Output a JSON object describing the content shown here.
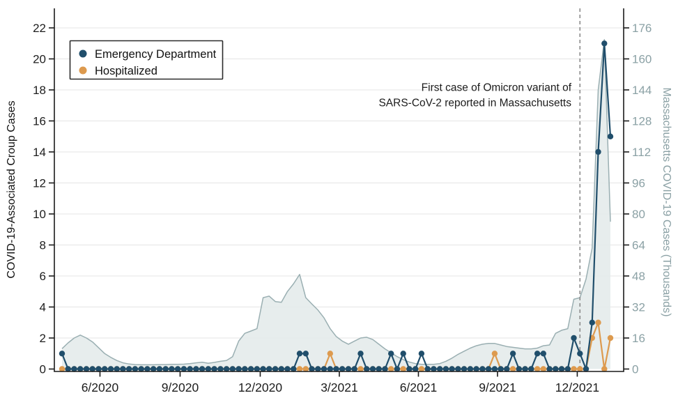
{
  "page": {
    "background": "#ffffff"
  },
  "colors": {
    "emergency_department": "#204e6b",
    "hospitalized": "#dd9a4e",
    "area_fill": "#e4ebeb",
    "area_stroke": "#9aafb2",
    "gridline": "#e9e9e9",
    "axis_line": "#1a1a1a",
    "dashed_reference_line": "#8a8a8a",
    "right_axis_text": "#8ba1a5"
  },
  "chart_data": {
    "type": "line",
    "subtype": "two weekly case-count lines (left axis) over a shaded area series (right axis)",
    "x_unit": "week_index",
    "n_weeks": 91,
    "x_ticks": [
      {
        "label": "6/2020",
        "week": 6.23
      },
      {
        "label": "9/2020",
        "week": 19.38
      },
      {
        "label": "12/2020",
        "week": 32.53
      },
      {
        "label": "3/2021",
        "week": 45.51
      },
      {
        "label": "6/2021",
        "week": 58.49
      },
      {
        "label": "9/2021",
        "week": 71.47
      },
      {
        "label": "12/2021",
        "week": 84.56
      }
    ],
    "y_left": {
      "label": "COVID-19-Associated Croup Cases",
      "min": 0,
      "max": 22,
      "step": 2,
      "grid": true
    },
    "y_right": {
      "label": "Massachusetts COVID-19 Cases (Thousands)",
      "min": 0,
      "max": 176,
      "step": 16
    },
    "annotation": {
      "line1": "First case of Omicron variant of",
      "line2": "SARS-CoV-2 reported in Massachusetts",
      "week": 85,
      "style": "vertical dashed line"
    },
    "legend": {
      "position": "top-left inside plot",
      "entries": [
        "Emergency Department",
        "Hospitalized"
      ]
    },
    "series": [
      {
        "name": "Emergency Department",
        "axis": "left",
        "color": "#204e6b",
        "marker": "dot",
        "values": [
          1,
          0,
          0,
          0,
          0,
          0,
          0,
          0,
          0,
          0,
          0,
          0,
          0,
          0,
          0,
          0,
          0,
          0,
          0,
          0,
          0,
          0,
          0,
          0,
          0,
          0,
          0,
          0,
          0,
          0,
          0,
          0,
          0,
          0,
          0,
          0,
          0,
          0,
          0,
          1,
          1,
          0,
          0,
          0,
          0,
          0,
          0,
          0,
          0,
          1,
          0,
          0,
          0,
          0,
          1,
          0,
          1,
          0,
          0,
          1,
          0,
          0,
          0,
          0,
          0,
          0,
          0,
          0,
          0,
          0,
          0,
          0,
          0,
          0,
          1,
          0,
          0,
          0,
          1,
          1,
          0,
          0,
          0,
          0,
          2,
          1,
          0,
          3,
          14,
          21,
          15
        ]
      },
      {
        "name": "Hospitalized",
        "axis": "left",
        "color": "#dd9a4e",
        "marker": "dot",
        "values": [
          0,
          0,
          0,
          0,
          0,
          0,
          0,
          0,
          0,
          0,
          0,
          0,
          0,
          0,
          0,
          0,
          0,
          0,
          0,
          0,
          0,
          0,
          0,
          0,
          0,
          0,
          0,
          0,
          0,
          0,
          0,
          0,
          0,
          0,
          0,
          0,
          0,
          0,
          0,
          0,
          0,
          0,
          0,
          0,
          1,
          0,
          0,
          0,
          0,
          0,
          0,
          0,
          0,
          0,
          0,
          0,
          0,
          0,
          0,
          0,
          0,
          0,
          0,
          0,
          0,
          0,
          0,
          0,
          0,
          0,
          0,
          1,
          0,
          0,
          0,
          0,
          0,
          0,
          0,
          0,
          0,
          0,
          0,
          0,
          0,
          0,
          0,
          2,
          3,
          0,
          2
        ]
      },
      {
        "name": "Massachusetts COVID-19 Cases (Thousands)",
        "axis": "right",
        "type": "area",
        "fill": "#e4ebeb",
        "stroke": "#9aafb2",
        "values": [
          10.5,
          13.5,
          16,
          17.5,
          16,
          14,
          11,
          8,
          6,
          4.4,
          3.2,
          2.6,
          2.3,
          2.2,
          2.2,
          2.2,
          2.3,
          2.3,
          2.4,
          2.4,
          2.5,
          2.8,
          3.2,
          3.5,
          3,
          3.4,
          4,
          4.4,
          6.4,
          14.4,
          18.4,
          19.6,
          20.8,
          36.8,
          37.6,
          34.8,
          34.4,
          40,
          44,
          48.8,
          36.8,
          33.6,
          30.4,
          26.4,
          20.8,
          16.8,
          14.4,
          12.8,
          14.4,
          16,
          16.4,
          15.2,
          12.8,
          10.4,
          8.4,
          6.4,
          4.8,
          3.6,
          2.8,
          2.4,
          2.4,
          2.4,
          2.8,
          4,
          5.6,
          7.6,
          9.2,
          10.8,
          12,
          12.8,
          13.2,
          13.2,
          12.4,
          11.6,
          11.2,
          10.8,
          10.4,
          10.4,
          10.8,
          12,
          12.4,
          18.4,
          20,
          20.8,
          36,
          36.8,
          46.4,
          62.4,
          144,
          170,
          76
        ]
      }
    ]
  }
}
